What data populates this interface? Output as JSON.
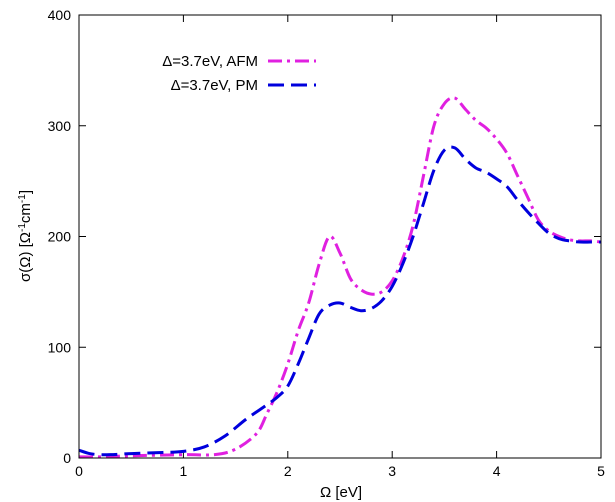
{
  "chart_data": {
    "type": "line",
    "xlabel": "Ω [eV]",
    "ylabel_main": "σ(Ω) [Ω",
    "ylabel_sup1": "-1",
    "ylabel_mid": "cm",
    "ylabel_sup2": "-1",
    "ylabel_end": "]",
    "xlim": [
      0,
      5
    ],
    "ylim": [
      0,
      400
    ],
    "xticks": [
      0,
      1,
      2,
      3,
      4,
      5
    ],
    "yticks": [
      0,
      100,
      200,
      300,
      400
    ],
    "legend_position": "top-left",
    "series": [
      {
        "name": "Δ=3.7eV, AFM",
        "color": "#e020e0",
        "style": "dash-dot",
        "x": [
          0.0,
          0.2,
          0.5,
          1.0,
          1.3,
          1.5,
          1.7,
          1.8,
          1.9,
          2.0,
          2.1,
          2.2,
          2.3,
          2.4,
          2.5,
          2.6,
          2.7,
          2.8,
          2.9,
          3.0,
          3.1,
          3.2,
          3.3,
          3.4,
          3.5,
          3.6,
          3.7,
          3.8,
          3.9,
          4.0,
          4.1,
          4.2,
          4.3,
          4.4,
          4.5,
          4.6,
          4.7,
          4.8,
          4.9,
          5.0
        ],
        "y": [
          1,
          1,
          2,
          3,
          3,
          8,
          22,
          40,
          60,
          85,
          115,
          140,
          175,
          200,
          185,
          162,
          152,
          148,
          150,
          160,
          180,
          210,
          255,
          300,
          320,
          325,
          315,
          305,
          298,
          288,
          275,
          255,
          235,
          215,
          205,
          200,
          197,
          196,
          196,
          195
        ]
      },
      {
        "name": "Δ=3.7eV, PM",
        "color": "#0000dd",
        "style": "dashed",
        "x": [
          0.0,
          0.1,
          0.2,
          0.3,
          0.5,
          0.8,
          1.0,
          1.2,
          1.4,
          1.6,
          1.8,
          1.9,
          2.0,
          2.1,
          2.2,
          2.3,
          2.4,
          2.5,
          2.6,
          2.7,
          2.8,
          2.9,
          3.0,
          3.1,
          3.2,
          3.3,
          3.4,
          3.5,
          3.6,
          3.7,
          3.8,
          3.9,
          4.0,
          4.1,
          4.2,
          4.3,
          4.4,
          4.5,
          4.6,
          4.7,
          4.8,
          4.9,
          5.0
        ],
        "y": [
          7,
          4,
          3,
          3,
          4,
          5,
          6,
          10,
          20,
          35,
          48,
          55,
          65,
          85,
          108,
          130,
          138,
          140,
          136,
          133,
          135,
          142,
          155,
          175,
          200,
          230,
          260,
          278,
          280,
          270,
          262,
          258,
          252,
          245,
          233,
          222,
          212,
          203,
          198,
          196,
          195,
          195,
          195
        ]
      }
    ]
  }
}
